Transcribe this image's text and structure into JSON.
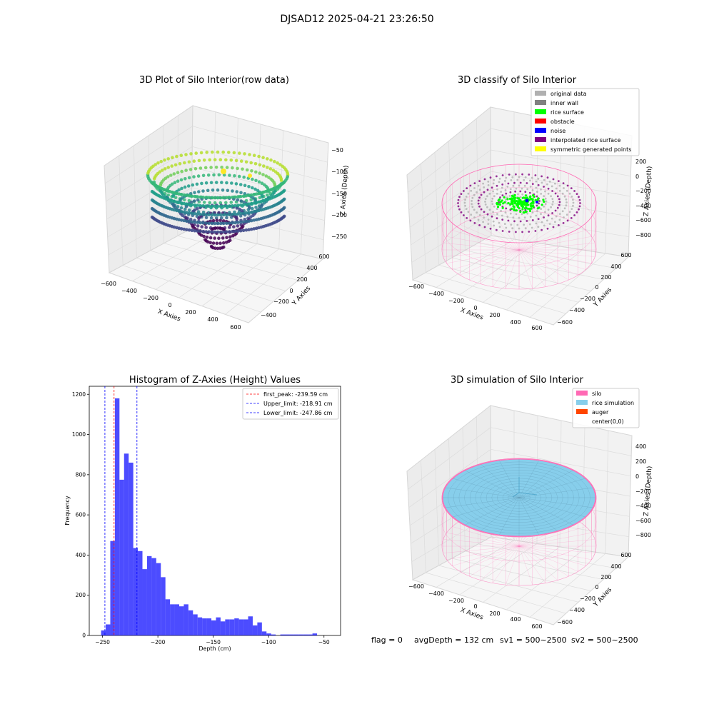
{
  "figure": {
    "suptitle": "DJSAD12 2025-04-21 23:26:50",
    "footer": {
      "flag": "flag = 0",
      "avg_depth": "avgDepth = 132 cm",
      "sv1": "sv1 = 500~2500",
      "sv2": "sv2 = 500~2500"
    }
  },
  "panel_raw": {
    "title": "3D Plot of Silo Interior(row data)",
    "x_label": "X Axies",
    "y_label": "Y Axies",
    "z_label": "Z Axies (Depth)",
    "x_ticks": [
      "−600",
      "−400",
      "−200",
      "0",
      "200",
      "400",
      "600"
    ],
    "y_ticks": [
      "−400",
      "−200",
      "0",
      "200",
      "400",
      "600"
    ],
    "z_ticks": [
      "−50",
      "−100",
      "−150",
      "−200",
      "−250"
    ],
    "colormap": "viridis"
  },
  "panel_classify": {
    "title": "3D classify of Silo Interior",
    "x_label": "X Axies",
    "y_label": "Y Axies",
    "z_label": "Z Axies (Depth)",
    "x_ticks": [
      "−600",
      "−400",
      "−200",
      "0",
      "200",
      "400",
      "600"
    ],
    "y_ticks": [
      "−600",
      "−400",
      "−200",
      "0",
      "200",
      "400",
      "600"
    ],
    "z_ticks": [
      "200",
      "0",
      "−200",
      "−400",
      "−600",
      "−800"
    ],
    "legend": [
      {
        "label": "original data",
        "color": "#b0b0b0"
      },
      {
        "label": "inner wall",
        "color": "#808080"
      },
      {
        "label": "rice surface",
        "color": "#00ff00"
      },
      {
        "label": "obstacle",
        "color": "#ff0000"
      },
      {
        "label": "noise",
        "color": "#0000ff"
      },
      {
        "label": "interpolated rice surface",
        "color": "#800080"
      },
      {
        "label": "symmetric generated points",
        "color": "#ffff00"
      }
    ]
  },
  "panel_simulation": {
    "title": "3D simulation of Silo Interior",
    "x_label": "X Axies",
    "y_label": "Y Axies",
    "z_label": "Z Axies (Depth)",
    "x_ticks": [
      "−600",
      "−400",
      "−200",
      "0",
      "200",
      "400",
      "600"
    ],
    "y_ticks": [
      "−600",
      "−400",
      "−200",
      "0",
      "200",
      "400",
      "600"
    ],
    "z_ticks": [
      "400",
      "200",
      "0",
      "−200",
      "−400",
      "−600",
      "−800"
    ],
    "legend": [
      {
        "label": "silo",
        "color": "#ff69b4"
      },
      {
        "label": "rice simulation",
        "color": "#87ceeb"
      },
      {
        "label": "auger",
        "color": "#ff4500"
      },
      {
        "label": "center(0,0)",
        "color": "#ffffff"
      }
    ]
  },
  "chart_data": {
    "type": "bar",
    "title": "Histogram of Z-Axies (Height) Values",
    "xlabel": "Depth (cm)",
    "ylabel": "Frequency",
    "xlim": [
      -262,
      -35
    ],
    "ylim": [
      0,
      1240
    ],
    "x_ticks": [
      -250,
      -200,
      -150,
      -100,
      -50
    ],
    "y_ticks": [
      0,
      200,
      400,
      600,
      800,
      1000,
      1200
    ],
    "bar_color": "#0000ff",
    "bin_edges_start": -251.3,
    "bin_width": 4.15,
    "values": [
      25,
      55,
      470,
      1180,
      775,
      905,
      860,
      435,
      420,
      330,
      395,
      385,
      360,
      290,
      180,
      155,
      155,
      145,
      155,
      125,
      105,
      90,
      85,
      85,
      75,
      90,
      70,
      80,
      80,
      85,
      80,
      80,
      95,
      50,
      65,
      20,
      10,
      5,
      0,
      5,
      5,
      5,
      5,
      5,
      5,
      5,
      10
    ],
    "lines": [
      {
        "label": "first_peak: -239.59 cm",
        "x": -239.59,
        "color": "#ff0000"
      },
      {
        "label": "Upper_limit: -218.91 cm",
        "x": -218.91,
        "color": "#0000ff"
      },
      {
        "label": "Lower_limit: -247.86 cm",
        "x": -247.86,
        "color": "#0000ff"
      }
    ]
  }
}
